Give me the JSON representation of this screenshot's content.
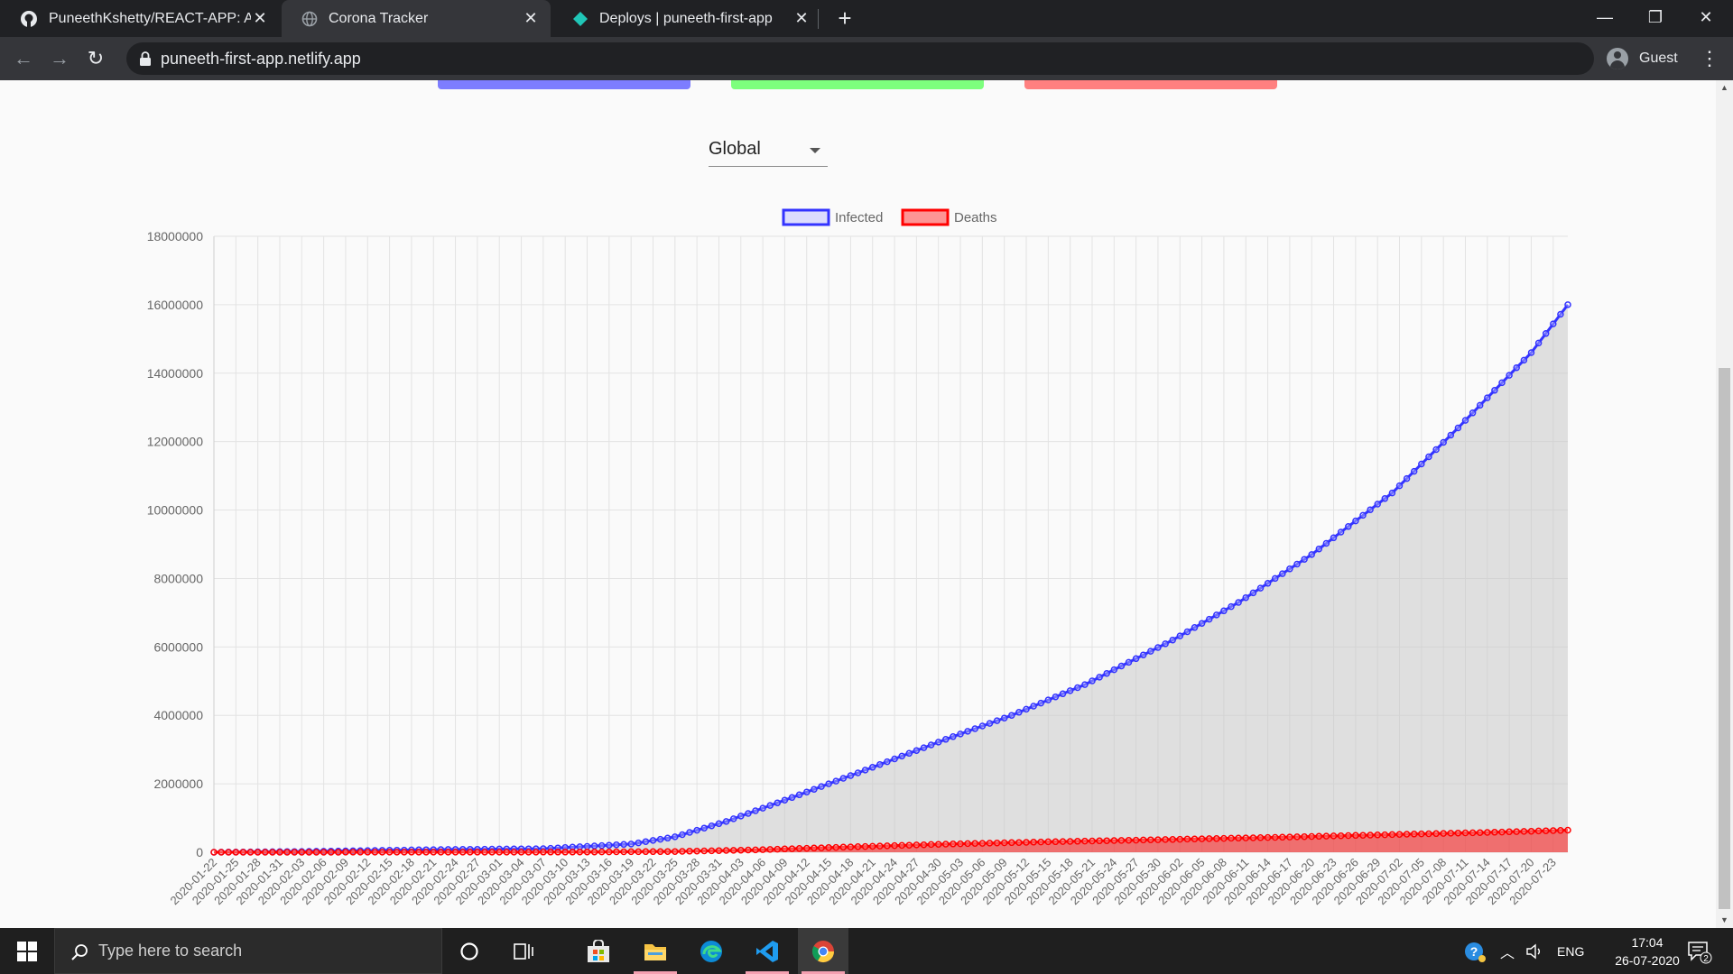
{
  "browser": {
    "tabs": [
      {
        "title": "PuneethKshetty/REACT-APP: App",
        "icon": "github-icon",
        "active": false
      },
      {
        "title": "Corona Tracker",
        "icon": "globe-icon",
        "active": true
      },
      {
        "title": "Deploys | puneeth-first-app",
        "icon": "netlify-icon",
        "active": false
      }
    ],
    "url": "puneeth-first-app.netlify.app",
    "profile": "Guest"
  },
  "page": {
    "card_colors": [
      "#7d7dff",
      "#7dff7d",
      "#ff8080"
    ],
    "country_select": {
      "value": "Global"
    }
  },
  "chart_data": {
    "type": "line",
    "title": "",
    "xlabel": "",
    "ylabel": "",
    "ylim": [
      0,
      18000000
    ],
    "yticks": [
      "18000000",
      "16000000",
      "14000000",
      "12000000",
      "10000000",
      "8000000",
      "6000000",
      "4000000",
      "2000000",
      "0"
    ],
    "grid": true,
    "legend_position": "top",
    "start_date": "2020-01-22",
    "end_date": "2020-07-25",
    "tick_labels": [
      "2020-01-22",
      "2020-01-25",
      "2020-01-28",
      "2020-01-31",
      "2020-02-03",
      "2020-02-06",
      "2020-02-09",
      "2020-02-12",
      "2020-02-15",
      "2020-02-18",
      "2020-02-21",
      "2020-02-24",
      "2020-02-27",
      "2020-03-01",
      "2020-03-04",
      "2020-03-07",
      "2020-03-10",
      "2020-03-13",
      "2020-03-16",
      "2020-03-19",
      "2020-03-22",
      "2020-03-25",
      "2020-03-28",
      "2020-03-31",
      "2020-04-03",
      "2020-04-06",
      "2020-04-09",
      "2020-04-12",
      "2020-04-15",
      "2020-04-18",
      "2020-04-21",
      "2020-04-24",
      "2020-04-27",
      "2020-04-30",
      "2020-05-03",
      "2020-05-06",
      "2020-05-09",
      "2020-05-12",
      "2020-05-15",
      "2020-05-18",
      "2020-05-21",
      "2020-05-24",
      "2020-05-27",
      "2020-05-30",
      "2020-06-02",
      "2020-06-05",
      "2020-06-08",
      "2020-06-11",
      "2020-06-14",
      "2020-06-17",
      "2020-06-20",
      "2020-06-23",
      "2020-06-26",
      "2020-06-29",
      "2020-07-02",
      "2020-07-05",
      "2020-07-08",
      "2020-07-11",
      "2020-07-14",
      "2020-07-17",
      "2020-07-20",
      "2020-07-23"
    ],
    "series": [
      {
        "name": "Infected",
        "color": "#3333ff",
        "points": [
          [
            "2020-01-22",
            555
          ],
          [
            "2020-02-06",
            30000
          ],
          [
            "2020-02-21",
            77000
          ],
          [
            "2020-03-07",
            105000
          ],
          [
            "2020-03-19",
            240000
          ],
          [
            "2020-03-25",
            450000
          ],
          [
            "2020-04-01",
            900000
          ],
          [
            "2020-04-10",
            1600000
          ],
          [
            "2020-04-20",
            2400000
          ],
          [
            "2020-05-01",
            3300000
          ],
          [
            "2020-05-10",
            4000000
          ],
          [
            "2020-05-20",
            4900000
          ],
          [
            "2020-06-01",
            6200000
          ],
          [
            "2020-06-10",
            7300000
          ],
          [
            "2020-06-20",
            8700000
          ],
          [
            "2020-07-01",
            10500000
          ],
          [
            "2020-07-10",
            12400000
          ],
          [
            "2020-07-20",
            14600000
          ],
          [
            "2020-07-25",
            16000000
          ]
        ]
      },
      {
        "name": "Deaths",
        "color": "#ff0000",
        "points": [
          [
            "2020-01-22",
            17
          ],
          [
            "2020-02-21",
            2250
          ],
          [
            "2020-03-10",
            4300
          ],
          [
            "2020-03-25",
            22000
          ],
          [
            "2020-04-05",
            69000
          ],
          [
            "2020-04-15",
            137000
          ],
          [
            "2020-05-01",
            238000
          ],
          [
            "2020-05-15",
            305000
          ],
          [
            "2020-06-01",
            375000
          ],
          [
            "2020-06-15",
            436000
          ],
          [
            "2020-07-01",
            517000
          ],
          [
            "2020-07-15",
            585000
          ],
          [
            "2020-07-25",
            645000
          ]
        ]
      }
    ]
  },
  "taskbar": {
    "search_placeholder": "Type here to search",
    "language": "ENG",
    "time": "17:04",
    "date": "26-07-2020",
    "notification_count": "2"
  }
}
